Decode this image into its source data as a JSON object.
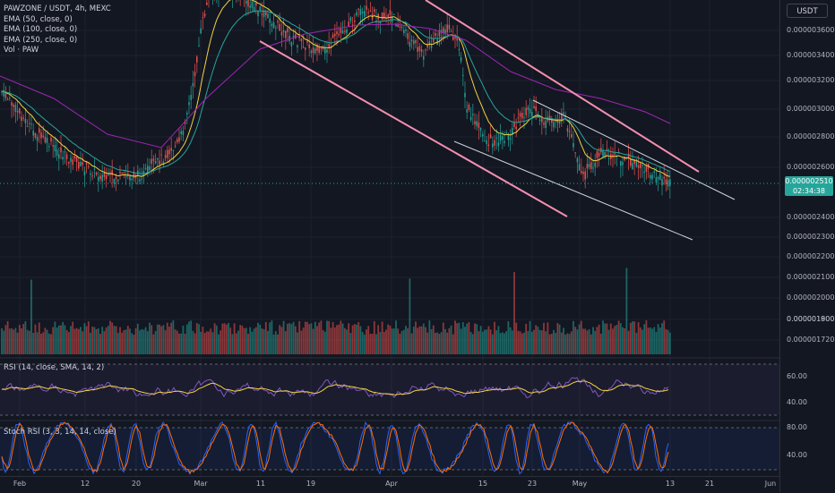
{
  "legend": {
    "symbol": "PAWZONE / USDT, 4h, MEXC",
    "ema50": "EMA (50, close, 0)",
    "ema100": "EMA (100, close, 0)",
    "ema250": "EMA (250, close, 0)",
    "vol": "Vol · PAW"
  },
  "rsi_label": "RSI (14, close, SMA, 14, 2)",
  "stoch_label": "Stoch RSI (3, 3, 14, 14, close)",
  "currency": "USDT",
  "last_price": "0.000002510",
  "countdown": "02:34:38",
  "price_ticks": [
    "0.000003600",
    "0.000003400",
    "0.000003200",
    "0.000003000",
    "0.000002800",
    "0.000002600",
    "0.000002400",
    "0.000002300",
    "0.000002200",
    "0.000002100",
    "0.000002000",
    "0.000001900",
    "0.000001800",
    "0.000001720"
  ],
  "rsi_ticks": [
    "60.00",
    "40.00"
  ],
  "stoch_ticks": [
    "80.00",
    "40.00"
  ],
  "time_labels": [
    "Feb",
    "12",
    "20",
    "Mar",
    "11",
    "19",
    "Apr",
    "15",
    "23",
    "May",
    "13",
    "21",
    "Jun"
  ],
  "colors": {
    "background": "#131722",
    "up": "#26a69a",
    "down": "#ef5350",
    "ema50": "#f2d33f",
    "ema100": "#26a69a",
    "ema250": "#9c27b0",
    "channel_pink": "#f48fb1",
    "channel_white": "#d1d4dc",
    "rsi": "#7e57c2",
    "stoch_k": "#2962ff",
    "stoch_d": "#ff6d00"
  }
}
